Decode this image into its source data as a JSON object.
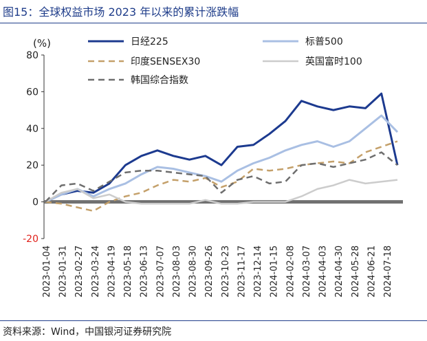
{
  "title": "图15：全球权益市场 2023 年以来的累计涨跌幅",
  "source": "资料来源：Wind，中国银河证券研究院",
  "chart_data": {
    "type": "line",
    "ylabel": "(%)",
    "ylim": [
      -20,
      80
    ],
    "yticks": [
      -20,
      0,
      20,
      40,
      60,
      80
    ],
    "x_tick_labels": [
      "2023-01-04",
      "2023-01-31",
      "2023-02-27",
      "2023-03-24",
      "2023-04-19",
      "2023-05-18",
      "2023-06-13",
      "2023-07-07",
      "2023-08-03",
      "2023-08-30",
      "2023-09-26",
      "2023-10-23",
      "2023-11-17",
      "2023-12-14",
      "2024-01-15",
      "2024-02-08",
      "2024-03-07",
      "2024-04-03",
      "2024-04-30",
      "2024-05-28",
      "2024-06-21",
      "2024-07-18"
    ],
    "legend_position": "top",
    "grid": false,
    "series": [
      {
        "name": "日经225",
        "color": "#1c3a8f",
        "dash": "solid",
        "width": 3,
        "values": [
          0,
          4,
          6,
          5,
          10,
          20,
          25,
          28,
          25,
          23,
          25,
          20,
          30,
          31,
          37,
          44,
          55,
          52,
          50,
          52,
          51,
          59,
          20
        ]
      },
      {
        "name": "标普500",
        "color": "#a9bfe3",
        "dash": "solid",
        "width": 3,
        "values": [
          0,
          4,
          7,
          3,
          7,
          10,
          15,
          19,
          18,
          16,
          14,
          11,
          17,
          21,
          24,
          28,
          31,
          33,
          30,
          33,
          40,
          47,
          38
        ]
      },
      {
        "name": "印度SENSEX30",
        "color": "#c4a06a",
        "dash": "dash",
        "width": 2.5,
        "values": [
          0,
          -1,
          -3,
          -5,
          0,
          3,
          5,
          9,
          12,
          11,
          13,
          8,
          11,
          18,
          17,
          18,
          20,
          21,
          22,
          21,
          27,
          30,
          33
        ]
      },
      {
        "name": "英国富时100",
        "color": "#cccccc",
        "dash": "solid",
        "width": 2.5,
        "values": [
          0,
          5,
          7,
          2,
          4,
          0,
          -1,
          -1,
          -1,
          -1,
          1,
          -1,
          -1,
          0,
          0,
          0,
          3,
          7,
          9,
          12,
          10,
          11,
          12
        ]
      },
      {
        "name": "韩国综合指数",
        "color": "#6e6e6e",
        "dash": "dash",
        "width": 2.5,
        "values": [
          0,
          9,
          10,
          6,
          11,
          16,
          17,
          17,
          16,
          15,
          14,
          5,
          12,
          14,
          10,
          11,
          20,
          21,
          19,
          21,
          23,
          27,
          20
        ]
      }
    ]
  }
}
